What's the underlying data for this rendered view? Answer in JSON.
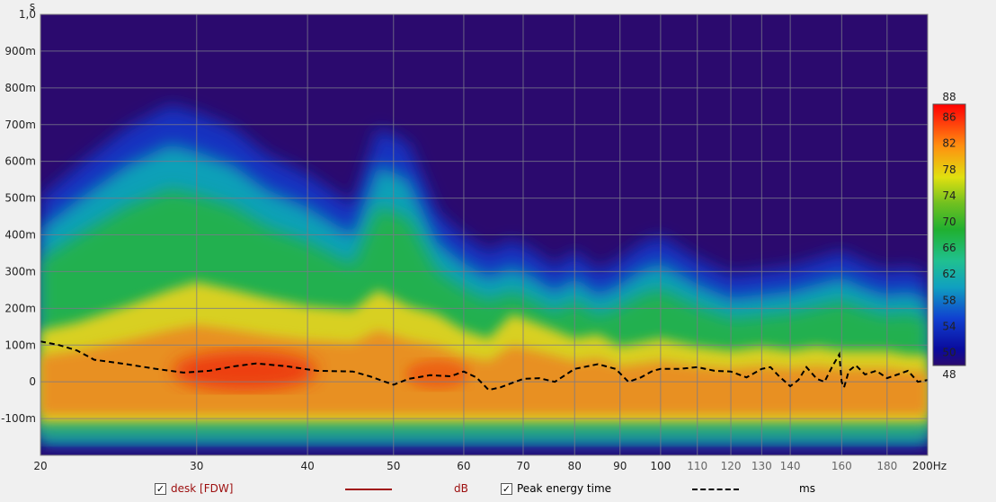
{
  "chart_data": {
    "type": "heatmap",
    "title": "",
    "y_unit_label": "s",
    "x_unit": "Hz",
    "x_scale": "log",
    "xlim": [
      20,
      200
    ],
    "ylim": [
      -0.2,
      1.0
    ],
    "x_ticks_major": [
      {
        "v": 20,
        "label": "20"
      },
      {
        "v": 30,
        "label": "30"
      },
      {
        "v": 40,
        "label": "40"
      },
      {
        "v": 50,
        "label": "50"
      },
      {
        "v": 60,
        "label": "60"
      },
      {
        "v": 70,
        "label": "70"
      },
      {
        "v": 80,
        "label": "80"
      },
      {
        "v": 90,
        "label": "90"
      },
      {
        "v": 100,
        "label": "100"
      }
    ],
    "x_ticks_minor": [
      {
        "v": 110,
        "label": "110"
      },
      {
        "v": 120,
        "label": "120"
      },
      {
        "v": 130,
        "label": "130"
      },
      {
        "v": 140,
        "label": "140"
      },
      {
        "v": 160,
        "label": "160"
      },
      {
        "v": 180,
        "label": "180"
      }
    ],
    "x_tick_end": {
      "v": 200,
      "label": "200Hz"
    },
    "y_ticks": [
      {
        "v": 1.0,
        "label": "1,0"
      },
      {
        "v": 0.9,
        "label": "900m"
      },
      {
        "v": 0.8,
        "label": "800m"
      },
      {
        "v": 0.7,
        "label": "700m"
      },
      {
        "v": 0.6,
        "label": "600m"
      },
      {
        "v": 0.5,
        "label": "500m"
      },
      {
        "v": 0.4,
        "label": "400m"
      },
      {
        "v": 0.3,
        "label": "300m"
      },
      {
        "v": 0.2,
        "label": "200m"
      },
      {
        "v": 0.1,
        "label": "100m"
      },
      {
        "v": 0.0,
        "label": "0"
      },
      {
        "v": -0.1,
        "label": "-100m"
      }
    ],
    "colorbar": {
      "min": 48,
      "max": 88,
      "min_label": "48",
      "max_label": "88",
      "ticks": [
        {
          "v": 86,
          "label": "86"
        },
        {
          "v": 82,
          "label": "82"
        },
        {
          "v": 78,
          "label": "78"
        },
        {
          "v": 74,
          "label": "74"
        },
        {
          "v": 70,
          "label": "70"
        },
        {
          "v": 66,
          "label": "66"
        },
        {
          "v": 62,
          "label": "62"
        },
        {
          "v": 58,
          "label": "58"
        },
        {
          "v": 54,
          "label": "54"
        },
        {
          "v": 50,
          "label": "50"
        }
      ]
    },
    "grid": true,
    "legend_position": "bottom",
    "energy_envelope": {
      "note_freq_hz": [
        20,
        22,
        25,
        28,
        30,
        33,
        36,
        40,
        45,
        48,
        52,
        56,
        60,
        64,
        68,
        72,
        76,
        80,
        85,
        90,
        95,
        100,
        110,
        120,
        130,
        140,
        150,
        160,
        170,
        180,
        190,
        200
      ],
      "top_s": [
        0.44,
        0.52,
        0.62,
        0.68,
        0.66,
        0.62,
        0.55,
        0.5,
        0.42,
        0.62,
        0.58,
        0.4,
        0.34,
        0.3,
        0.33,
        0.3,
        0.26,
        0.3,
        0.25,
        0.28,
        0.32,
        0.34,
        0.28,
        0.24,
        0.25,
        0.26,
        0.28,
        0.3,
        0.27,
        0.25,
        0.26,
        0.24
      ],
      "yellow_s": [
        0.1,
        0.12,
        0.16,
        0.2,
        0.22,
        0.2,
        0.18,
        0.16,
        0.15,
        0.2,
        0.16,
        0.14,
        0.1,
        0.08,
        0.14,
        0.12,
        0.1,
        0.08,
        0.09,
        0.06,
        0.07,
        0.08,
        0.06,
        0.05,
        0.06,
        0.05,
        0.06,
        0.05,
        0.05,
        0.05,
        0.04,
        0.04
      ],
      "red_center_s": 0.03,
      "red_center_hz": 34
    },
    "series": [
      {
        "name": "Peak energy time",
        "unit": "ms",
        "style": "dashed",
        "color": "#000000",
        "x": [
          20,
          21,
          22,
          23,
          25,
          27,
          29,
          31,
          33,
          35,
          38,
          41,
          45,
          47,
          50,
          52,
          55,
          58,
          60,
          62,
          64,
          66,
          70,
          73,
          76,
          80,
          85,
          89,
          92,
          95,
          98,
          100,
          105,
          110,
          115,
          120,
          125,
          130,
          133,
          136,
          140,
          143,
          146,
          150,
          153,
          156,
          159,
          160,
          161,
          163,
          166,
          170,
          175,
          180,
          185,
          190,
          195,
          200
        ],
        "y": [
          0.11,
          0.1,
          0.085,
          0.06,
          0.048,
          0.035,
          0.025,
          0.03,
          0.042,
          0.05,
          0.042,
          0.03,
          0.028,
          0.015,
          -0.008,
          0.008,
          0.018,
          0.015,
          0.028,
          0.012,
          -0.022,
          -0.015,
          0.008,
          0.01,
          0.0,
          0.035,
          0.048,
          0.035,
          0.0,
          0.012,
          0.03,
          0.035,
          0.035,
          0.04,
          0.03,
          0.028,
          0.012,
          0.035,
          0.04,
          0.015,
          -0.012,
          0.005,
          0.04,
          0.008,
          0.0,
          0.04,
          0.075,
          0.0,
          -0.015,
          0.03,
          0.045,
          0.02,
          0.03,
          0.01,
          0.02,
          0.03,
          0.0,
          0.005
        ]
      }
    ]
  },
  "legend": {
    "item1_label": "desk [FDW]",
    "item1_checked": "✓",
    "item1_unit": "dB",
    "item1_color": "#a01010",
    "item2_label": "Peak energy time",
    "item2_checked": "✓",
    "item2_unit": "ms"
  },
  "colors": {
    "plot_bg": "#2b0a6e",
    "grid": "#7a7a8a",
    "frame_bg": "#f0f0f0"
  }
}
